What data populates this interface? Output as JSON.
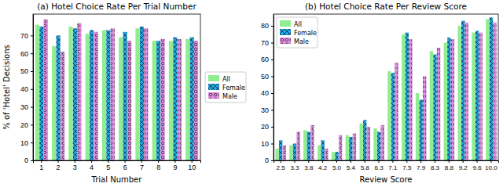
{
  "chart_data": [
    {
      "type": "bar",
      "title": "(a) Hotel Choice Rate Per Trial Number",
      "x_label": "Trial Number",
      "y_label": "% of 'Hotel' Decisions",
      "categories": [
        "1",
        "2",
        "3",
        "4",
        "5",
        "6",
        "7",
        "8",
        "9",
        "10"
      ],
      "series": [
        {
          "name": "All",
          "color": "#90ee90",
          "values": [
            76,
            64,
            75,
            71,
            73,
            69,
            74,
            67,
            67,
            68
          ]
        },
        {
          "name": "Female",
          "color": "#1fa8e6",
          "values": [
            75,
            70,
            74,
            73,
            73,
            72,
            75,
            67,
            69,
            69
          ]
        },
        {
          "name": "Male",
          "color": "#e08be0",
          "values": [
            79,
            61,
            77,
            72,
            74,
            67,
            74,
            68,
            68,
            67
          ]
        }
      ],
      "ylim": [
        0,
        82
      ],
      "yticks": [
        0,
        10,
        20,
        30,
        40,
        50,
        60,
        70
      ],
      "legend": "right"
    },
    {
      "type": "bar",
      "title": "(b) Hotel Choice Rate Per Review Score",
      "x_label": "Review Score",
      "categories": [
        "2.5",
        "3.3",
        "3.8",
        "4.2",
        "5.0",
        "5.4",
        "5.8",
        "6.3",
        "7.1",
        "7.5",
        "7.9",
        "8.3",
        "8.8",
        "9.2",
        "9.6",
        "10.0"
      ],
      "series": [
        {
          "name": "All",
          "color": "#90ee90",
          "values": [
            7,
            9,
            18,
            9,
            5,
            15,
            22,
            19,
            53,
            75,
            40,
            65,
            70,
            80,
            76,
            84
          ]
        },
        {
          "name": "Female",
          "color": "#1fa8e6",
          "values": [
            12,
            10,
            17,
            12,
            5,
            14,
            24,
            17,
            52,
            76,
            36,
            63,
            73,
            83,
            77,
            85
          ]
        },
        {
          "name": "Male",
          "color": "#e08be0",
          "values": [
            9,
            17,
            21,
            7,
            15,
            16,
            20,
            21,
            58,
            72,
            50,
            67,
            72,
            82,
            76,
            82
          ]
        }
      ],
      "ylim": [
        0,
        87
      ],
      "yticks": [
        0,
        10,
        20,
        30,
        40,
        50,
        60,
        70,
        80
      ],
      "legend": "upper left"
    }
  ]
}
